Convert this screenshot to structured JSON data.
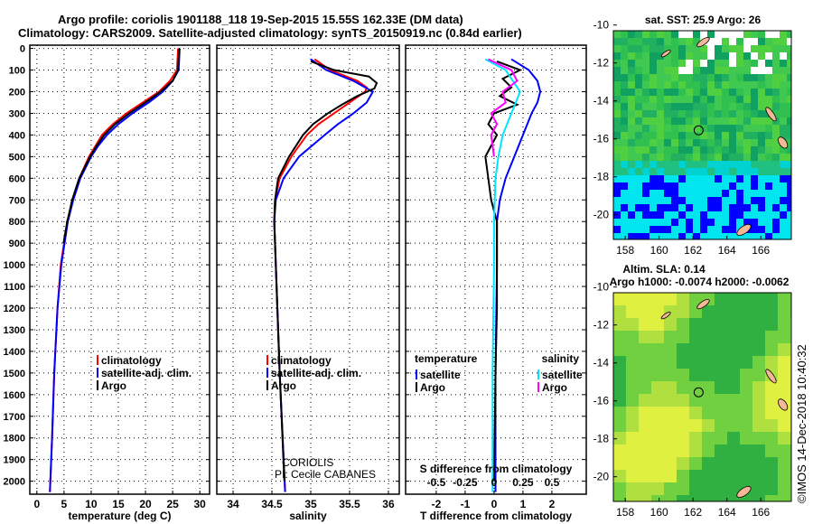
{
  "title_line1": "Argo profile: coriolis 1901188_118 19-Sep-2015 15.55S 162.33E (DM data)",
  "title_line2": "Climatology: CARS2009. Satellite-adjusted climatology: synTS_20150919.nc (0.84d earlier)",
  "credit": "CORIOLIS",
  "pi": "PI: Cecile CABANES",
  "imos": "©IMOS 14-Dec-2018 10:40:32",
  "colors": {
    "climatology": "#ff0000",
    "satellite": "#0000ff",
    "argo": "#000000",
    "sal_sat": "#00e5ff",
    "sal_argo": "#ff00ff"
  },
  "chart_data": [
    {
      "type": "line",
      "id": "temperature",
      "xlabel": "temperature (deg C)",
      "ylabel": "depth",
      "xlim": [
        -1.3,
        31.8
      ],
      "ylim": [
        2060,
        -15
      ],
      "xticks": [
        0,
        5,
        10,
        15,
        20,
        25,
        30
      ],
      "yticks": [
        0,
        100,
        200,
        300,
        400,
        500,
        600,
        700,
        800,
        900,
        1000,
        1100,
        1200,
        1300,
        1400,
        1500,
        1600,
        1700,
        1800,
        1900,
        2000
      ],
      "legend": [
        "climatology",
        "satellite-adj. clim.",
        "Argo"
      ],
      "series": [
        {
          "name": "climatology",
          "color": "#ff0000",
          "depth": [
            0,
            100,
            150,
            200,
            250,
            300,
            350,
            400,
            450,
            500,
            600,
            700,
            800,
            1000,
            1200,
            1500,
            1800,
            2050
          ],
          "values": [
            26,
            25.8,
            24.5,
            22.5,
            19.5,
            16.5,
            14,
            12,
            10.8,
            9.6,
            7.8,
            6.6,
            5.6,
            4.4,
            3.8,
            3.2,
            2.8,
            2.4
          ]
        },
        {
          "name": "satellite-adj. clim.",
          "color": "#0000ff",
          "depth": [
            0,
            100,
            150,
            200,
            250,
            300,
            350,
            400,
            450,
            500,
            600,
            700,
            800,
            1000,
            1200,
            1500,
            1800,
            2050
          ],
          "values": [
            26.3,
            26.1,
            25,
            23.2,
            20.6,
            17.6,
            15,
            12.9,
            11.3,
            10,
            8,
            6.7,
            5.7,
            4.5,
            3.8,
            3.2,
            2.8,
            2.4
          ]
        },
        {
          "name": "Argo",
          "color": "#000000",
          "depth": [
            0,
            100,
            150,
            200,
            250,
            300,
            350,
            400,
            450,
            500,
            600,
            700,
            800,
            900
          ],
          "values": [
            26.2,
            26,
            25,
            22.8,
            20,
            17,
            14.4,
            12.4,
            11,
            9.8,
            7.8,
            6.5,
            5.6,
            4.9
          ]
        }
      ]
    },
    {
      "type": "line",
      "id": "salinity",
      "xlabel": "salinity",
      "xlim": [
        33.79,
        36.14
      ],
      "ylim": [
        2060,
        -15
      ],
      "xticks": [
        34,
        34.5,
        35,
        35.5,
        36
      ],
      "legend": [
        "climatology",
        "satellite-adj. clim.",
        "Argo"
      ],
      "series": [
        {
          "name": "climatology",
          "color": "#ff0000",
          "depth": [
            50,
            100,
            150,
            180,
            200,
            250,
            300,
            350,
            400,
            500,
            600,
            700,
            800,
            1000,
            1500,
            2050
          ],
          "values": [
            35.05,
            35.25,
            35.6,
            35.72,
            35.7,
            35.5,
            35.3,
            35.1,
            34.95,
            34.75,
            34.6,
            34.54,
            34.53,
            34.55,
            34.6,
            34.67
          ]
        },
        {
          "name": "satellite-adj. clim.",
          "color": "#0000ff",
          "depth": [
            50,
            100,
            150,
            200,
            250,
            300,
            350,
            400,
            500,
            600,
            700,
            800,
            1000,
            1500,
            2050
          ],
          "values": [
            35.0,
            35.2,
            35.55,
            35.8,
            35.72,
            35.55,
            35.35,
            35.18,
            34.85,
            34.65,
            34.55,
            34.53,
            34.55,
            34.6,
            34.67
          ]
        },
        {
          "name": "Argo",
          "color": "#000000",
          "depth": [
            60,
            100,
            130,
            160,
            185,
            220,
            260,
            300,
            350,
            400,
            500,
            600,
            700,
            800,
            1000,
            1500,
            2000
          ],
          "values": [
            35.0,
            35.3,
            35.75,
            35.85,
            35.82,
            35.6,
            35.4,
            35.22,
            35.03,
            34.9,
            34.72,
            34.58,
            34.54,
            34.53,
            34.55,
            34.6,
            34.66
          ]
        }
      ]
    },
    {
      "type": "line",
      "id": "difference",
      "xlabel": "T difference from climatology",
      "x2label": "S difference from climatology",
      "xlim": [
        -3.06,
        3.19
      ],
      "ylim": [
        2060,
        -15
      ],
      "xticks": [
        -2,
        -1,
        0,
        1,
        2
      ],
      "x2ticks": [
        "-0.5",
        "-0.25",
        "0",
        "0.25",
        "0.5"
      ],
      "legend_temp_title": "temperature",
      "legend_sal_title": "salinity",
      "legend": [
        "satellite",
        "Argo",
        "satellite",
        "Argo"
      ],
      "series": [
        {
          "name": "temperature satellite",
          "color": "#0000ff",
          "depth": [
            50,
            100,
            150,
            200,
            250,
            300,
            400,
            500,
            600,
            700,
            800,
            1000,
            1500,
            2050
          ],
          "values": [
            0.6,
            1.2,
            1.5,
            1.6,
            1.5,
            1.3,
            1.0,
            0.7,
            0.4,
            0.2,
            0.1,
            0.1,
            0.05,
            0.05
          ]
        },
        {
          "name": "temperature Argo",
          "color": "#000000",
          "depth": [
            60,
            100,
            140,
            180,
            220,
            260,
            300,
            350,
            400,
            500,
            600,
            700,
            800,
            900,
            1200,
            1500,
            2000
          ],
          "values": [
            0.1,
            0.9,
            0.3,
            0.6,
            0.2,
            0.8,
            0.0,
            -0.2,
            0.1,
            -0.3,
            -0.2,
            -0.1,
            0.1,
            0.1,
            0.1,
            0.05,
            0.0
          ]
        },
        {
          "name": "salinity satellite",
          "color": "#00e5ff",
          "depth": [
            50,
            100,
            200,
            300,
            400,
            500,
            600,
            800,
            1000,
            1500,
            2050
          ],
          "values": [
            -0.3,
            0.4,
            0.9,
            0.6,
            0.3,
            0.15,
            0.05,
            0,
            0,
            -0.05,
            -0.05
          ]
        },
        {
          "name": "salinity Argo",
          "color": "#ff00ff",
          "depth": [
            50,
            100,
            150,
            200,
            250,
            300,
            350,
            400,
            500
          ],
          "values": [
            -0.2,
            0.6,
            0.8,
            0.3,
            0.4,
            -0.1,
            0.1,
            -0.1,
            0.0
          ]
        }
      ]
    },
    {
      "type": "heatmap",
      "id": "sst_map",
      "title": "sat. SST: 25.9 Argo: 26",
      "xticks": [
        158,
        160,
        162,
        164,
        166
      ],
      "yticks": [
        -10,
        -12,
        -14,
        -16,
        -18,
        -20
      ],
      "xlim": [
        157.3,
        167.8
      ],
      "ylim": [
        -10.3,
        -21.3
      ],
      "marker": [
        162.33,
        -15.55
      ]
    },
    {
      "type": "heatmap",
      "id": "sla_map",
      "title": "Altim. SLA: 0.14",
      "subtitle": "Argo h1000: -0.0074 h2000: -0.0062",
      "xticks": [
        158,
        160,
        162,
        164,
        166
      ],
      "yticks": [
        -10,
        -12,
        -14,
        -16,
        -18,
        -20
      ],
      "xlim": [
        157.3,
        167.8
      ],
      "ylim": [
        -10.3,
        -21.3
      ],
      "marker": [
        162.33,
        -15.55
      ]
    }
  ]
}
